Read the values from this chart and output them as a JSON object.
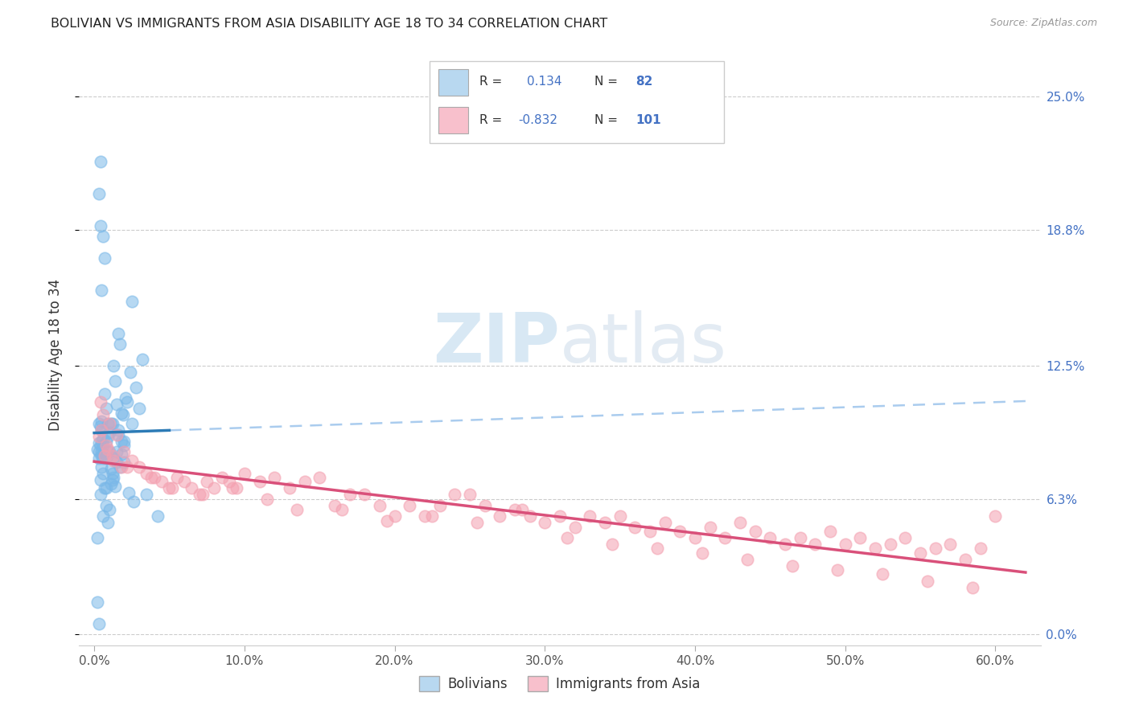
{
  "title": "BOLIVIAN VS IMMIGRANTS FROM ASIA DISABILITY AGE 18 TO 34 CORRELATION CHART",
  "source": "Source: ZipAtlas.com",
  "xlabel_vals": [
    0.0,
    10.0,
    20.0,
    30.0,
    40.0,
    50.0,
    60.0
  ],
  "ylabel_vals": [
    0.0,
    6.3,
    12.5,
    18.8,
    25.0
  ],
  "xlim": [
    -1.0,
    63
  ],
  "ylim": [
    -0.5,
    26.5
  ],
  "r_bolivian": "0.134",
  "n_bolivian": "82",
  "r_asia": "-0.832",
  "n_asia": "101",
  "blue_scatter_color": "#7ab8e8",
  "pink_scatter_color": "#f4a0b0",
  "blue_line_color": "#2c7bb6",
  "pink_line_color": "#d9507a",
  "dashed_line_color": "#aaccee",
  "legend_blue_fill": "#b8d8f0",
  "legend_pink_fill": "#f8c0cc",
  "watermark_color": "#c8dff0",
  "legend_label_blue": "Bolivians",
  "legend_label_pink": "Immigrants from Asia",
  "bolivian_x": [
    0.5,
    0.8,
    1.2,
    0.3,
    1.5,
    2.0,
    1.8,
    0.6,
    0.9,
    1.1,
    0.4,
    0.7,
    1.3,
    1.6,
    2.2,
    2.5,
    1.0,
    0.2,
    0.8,
    1.4,
    0.5,
    1.9,
    2.8,
    3.2,
    0.6,
    1.7,
    2.1,
    0.3,
    0.9,
    1.5,
    1.2,
    0.7,
    2.0,
    1.6,
    0.4,
    2.4,
    1.8,
    3.5,
    0.5,
    1.1,
    0.8,
    1.3,
    0.6,
    2.6,
    1.0,
    0.2,
    1.7,
    2.3,
    0.9,
    1.4,
    0.3,
    0.3,
    1.1,
    0.6,
    0.8,
    2.0,
    1.5,
    1.2,
    0.4,
    0.7,
    1.8,
    2.5,
    0.9,
    3.0,
    1.6,
    0.5,
    1.3,
    4.2,
    0.5,
    0.8,
    1.0,
    0.6,
    0.4,
    0.5,
    0.3,
    0.4,
    0.6,
    0.5,
    0.7,
    0.4,
    0.3,
    0.2
  ],
  "bolivian_y": [
    9.5,
    8.2,
    9.8,
    9.8,
    8.5,
    9.0,
    10.3,
    8.8,
    9.2,
    9.8,
    9.7,
    11.2,
    12.5,
    14.0,
    10.8,
    15.5,
    9.4,
    8.6,
    10.5,
    11.8,
    8.3,
    10.2,
    11.5,
    12.8,
    9.1,
    13.5,
    11.0,
    8.9,
    9.8,
    10.7,
    7.5,
    6.8,
    8.0,
    9.3,
    7.2,
    12.2,
    8.4,
    6.5,
    9.9,
    7.7,
    6.0,
    7.3,
    5.5,
    6.2,
    5.8,
    4.5,
    7.8,
    6.6,
    5.2,
    6.9,
    8.5,
    8.2,
    7.0,
    7.5,
    6.8,
    8.8,
    8.0,
    7.2,
    6.5,
    8.3,
    9.0,
    9.8,
    8.5,
    10.5,
    9.5,
    7.8,
    8.2,
    5.5,
    8.5,
    9.0,
    8.5,
    8.2,
    8.8,
    9.0,
    20.5,
    22.0,
    18.5,
    16.0,
    17.5,
    19.0,
    0.5,
    1.5
  ],
  "asia_x": [
    0.3,
    0.5,
    0.8,
    1.0,
    1.2,
    0.4,
    0.6,
    0.9,
    1.5,
    1.8,
    2.0,
    2.5,
    3.0,
    3.5,
    4.0,
    4.5,
    5.0,
    5.5,
    6.0,
    6.5,
    7.0,
    7.5,
    8.0,
    8.5,
    9.0,
    9.5,
    10.0,
    11.0,
    12.0,
    13.0,
    14.0,
    15.0,
    16.0,
    17.0,
    18.0,
    19.0,
    20.0,
    21.0,
    22.0,
    23.0,
    24.0,
    25.0,
    26.0,
    27.0,
    28.0,
    29.0,
    30.0,
    31.0,
    32.0,
    33.0,
    34.0,
    35.0,
    36.0,
    37.0,
    38.0,
    39.0,
    40.0,
    41.0,
    42.0,
    43.0,
    44.0,
    45.0,
    46.0,
    47.0,
    48.0,
    49.0,
    50.0,
    51.0,
    52.0,
    53.0,
    54.0,
    55.0,
    56.0,
    57.0,
    58.0,
    59.0,
    60.0,
    0.7,
    1.3,
    2.2,
    3.8,
    5.2,
    7.2,
    9.2,
    11.5,
    13.5,
    16.5,
    19.5,
    22.5,
    25.5,
    28.5,
    31.5,
    34.5,
    37.5,
    40.5,
    43.5,
    46.5,
    49.5,
    52.5,
    55.5,
    58.5
  ],
  "asia_y": [
    9.2,
    9.5,
    8.8,
    9.8,
    8.3,
    10.8,
    10.2,
    8.6,
    9.3,
    7.8,
    8.5,
    8.1,
    7.8,
    7.5,
    7.3,
    7.1,
    6.8,
    7.3,
    7.1,
    6.8,
    6.5,
    7.1,
    6.8,
    7.3,
    7.1,
    6.8,
    7.5,
    7.1,
    7.3,
    6.8,
    7.1,
    7.3,
    6.0,
    6.5,
    6.5,
    6.0,
    5.5,
    6.0,
    5.5,
    6.0,
    6.5,
    6.5,
    6.0,
    5.5,
    5.8,
    5.5,
    5.2,
    5.5,
    5.0,
    5.5,
    5.2,
    5.5,
    5.0,
    4.8,
    5.2,
    4.8,
    4.5,
    5.0,
    4.5,
    5.2,
    4.8,
    4.5,
    4.2,
    4.5,
    4.2,
    4.8,
    4.2,
    4.5,
    4.0,
    4.2,
    4.5,
    3.8,
    4.0,
    4.2,
    3.5,
    4.0,
    5.5,
    8.3,
    8.1,
    7.8,
    7.3,
    6.8,
    6.5,
    6.8,
    6.3,
    5.8,
    5.8,
    5.3,
    5.5,
    5.2,
    5.8,
    4.5,
    4.2,
    4.0,
    3.8,
    3.5,
    3.2,
    3.0,
    2.8,
    2.5,
    2.2
  ]
}
